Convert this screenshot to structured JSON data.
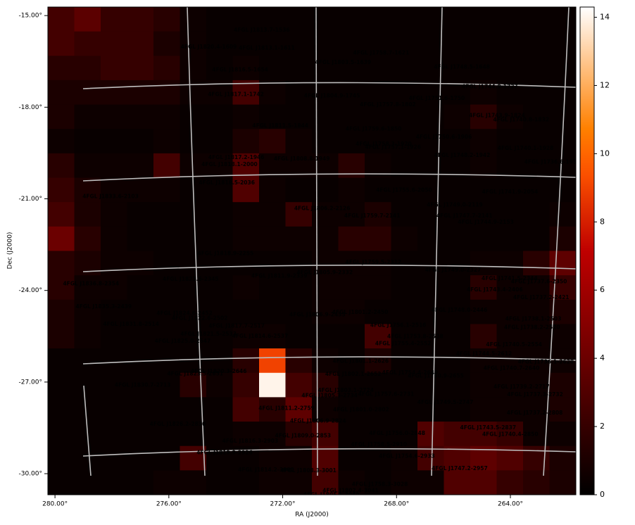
{
  "chart_data": {
    "type": "heatmap",
    "xlabel": "RA (J2000)",
    "ylabel": "Dec (J2000)",
    "xlim": [
      280.25,
      261.7
    ],
    "ylim": [
      -30.69,
      -14.72
    ],
    "xticks": [
      {
        "value": 280,
        "label": "280.00°"
      },
      {
        "value": 276,
        "label": "276.00°"
      },
      {
        "value": 272,
        "label": "272.00°"
      },
      {
        "value": 268,
        "label": "268.00°"
      },
      {
        "value": 264,
        "label": "264.00°"
      }
    ],
    "yticks": [
      {
        "value": -15,
        "label": "-15.00°"
      },
      {
        "value": -18,
        "label": "-18.00°"
      },
      {
        "value": -21,
        "label": "-21.00°"
      },
      {
        "value": -24,
        "label": "-24.00°"
      },
      {
        "value": -27,
        "label": "-27.00°"
      },
      {
        "value": -30,
        "label": "-30.00°"
      }
    ],
    "colormap": "gist_heat",
    "clim": [
      0,
      14.3
    ],
    "cticks": [
      0,
      2,
      4,
      6,
      8,
      10,
      12,
      14
    ],
    "annotation_color": "#1c9c1c",
    "values": [
      [
        2.5,
        3.4,
        2,
        2,
        1.5,
        0.5,
        0.3,
        0.3,
        0.3,
        0.3,
        0.3,
        0.3,
        0.3,
        0.3,
        0.3,
        0.3,
        0.3,
        0.3,
        0.3,
        0.3
      ],
      [
        2.5,
        2,
        2,
        2,
        1,
        0.5,
        0.3,
        0.3,
        0.3,
        0.3,
        0.3,
        0.3,
        0.3,
        0.3,
        0.3,
        0.3,
        0.3,
        0.3,
        0.3,
        0.3
      ],
      [
        1.5,
        1.5,
        2,
        2,
        1.5,
        0.5,
        0.3,
        0.5,
        0.3,
        0.3,
        0.3,
        0.3,
        0.3,
        0.3,
        0.3,
        0.3,
        0.3,
        0.3,
        0.3,
        0.3
      ],
      [
        1,
        1,
        1,
        1,
        1,
        0.5,
        0.5,
        2.5,
        0.5,
        0.3,
        0.3,
        0.3,
        0.3,
        0.3,
        0.3,
        0.3,
        0.5,
        0.3,
        0.3,
        0.3
      ],
      [
        1,
        0.5,
        0.5,
        0.5,
        0.5,
        0.3,
        0.3,
        0.5,
        0.3,
        0.3,
        0.3,
        0.3,
        0.3,
        0.3,
        0.3,
        0.5,
        1.5,
        0.5,
        0.3,
        0.3
      ],
      [
        0.5,
        0.3,
        0.3,
        0.3,
        0.5,
        0.3,
        0.3,
        1,
        1.5,
        0.5,
        0.3,
        0.3,
        0.3,
        0.3,
        0.3,
        0.3,
        0.5,
        0.3,
        0.3,
        0.3
      ],
      [
        1.5,
        0.5,
        0.5,
        0.5,
        2.5,
        0.5,
        0.5,
        3,
        0.5,
        0.5,
        0.5,
        1.5,
        0.5,
        0.3,
        0.3,
        0.3,
        0.5,
        0.3,
        0.3,
        0.3
      ],
      [
        2,
        1,
        0.5,
        0.5,
        0.5,
        0.3,
        0.3,
        3,
        0.5,
        0.3,
        0.3,
        0.5,
        0.3,
        0.3,
        0.3,
        0.3,
        0.3,
        0.3,
        0.3,
        0.3
      ],
      [
        2.5,
        1,
        0.5,
        0.3,
        0.3,
        0.3,
        0.3,
        0.5,
        0.5,
        2,
        0.5,
        0.5,
        1,
        0.3,
        0.3,
        0.3,
        0.3,
        0.3,
        0.3,
        0.5
      ],
      [
        4,
        1.5,
        0.5,
        0.3,
        0.3,
        0.3,
        0.3,
        0.5,
        0.5,
        0.5,
        0.5,
        1.5,
        1.5,
        0.5,
        0.3,
        0.3,
        0.3,
        0.3,
        0.3,
        1
      ],
      [
        1.5,
        1,
        0.5,
        0.5,
        0.3,
        0.3,
        0.3,
        0.3,
        0.3,
        0.3,
        0.5,
        0.5,
        0.5,
        0.3,
        0.3,
        0.3,
        0.5,
        0.5,
        1.5,
        3.5
      ],
      [
        1.5,
        0.5,
        0.5,
        0.3,
        0.3,
        0.3,
        0.3,
        0.5,
        0.3,
        0.3,
        0.5,
        0.5,
        0.5,
        0.3,
        0.3,
        0.3,
        1.5,
        0.5,
        0.5,
        2
      ],
      [
        1,
        0.5,
        0.3,
        0.3,
        0.3,
        0.3,
        0.3,
        0.3,
        0.3,
        0.3,
        0.5,
        0.5,
        0.3,
        0.3,
        0.3,
        0.3,
        0.5,
        0.5,
        0.5,
        1
      ],
      [
        1,
        0.5,
        0.3,
        0.3,
        0.3,
        0.3,
        0.3,
        0.5,
        0.5,
        0.3,
        0.3,
        0.3,
        2.5,
        0.3,
        0.3,
        0.3,
        1.5,
        0.5,
        0.5,
        0.5
      ],
      [
        0.3,
        0.3,
        0.3,
        0.3,
        0.3,
        0.3,
        0.3,
        1.5,
        9,
        1.5,
        0.5,
        0.3,
        1,
        0.3,
        0.3,
        0.3,
        0.5,
        0.5,
        0.5,
        0.5
      ],
      [
        0.3,
        0.3,
        0.3,
        0.3,
        0.3,
        1.5,
        0.5,
        2,
        14,
        2.5,
        1.5,
        0.3,
        0.3,
        0.3,
        0.3,
        0.3,
        0.5,
        0.5,
        0.5,
        1
      ],
      [
        0.3,
        0.3,
        0.3,
        0.3,
        0.3,
        0.3,
        0.3,
        2.5,
        1.5,
        3.5,
        0.5,
        0.3,
        0.3,
        0.3,
        0.3,
        0.3,
        0.5,
        0.5,
        0.5,
        1
      ],
      [
        0.3,
        0.3,
        0.3,
        0.3,
        0.3,
        0.3,
        0.3,
        0.5,
        0.5,
        1.5,
        2.5,
        0.3,
        0.3,
        0.3,
        3,
        2.5,
        2.5,
        2,
        0.5,
        0.5
      ],
      [
        0.3,
        0.3,
        0.3,
        0.3,
        0.3,
        2.5,
        0.3,
        0.3,
        0.5,
        0.5,
        3,
        0.3,
        0.3,
        0.5,
        2.5,
        3,
        3.5,
        3,
        2,
        1
      ],
      [
        0.3,
        0.3,
        0.3,
        0.3,
        0.5,
        0.5,
        0.3,
        0.3,
        0.5,
        0.5,
        2.5,
        0.5,
        0.3,
        0.5,
        0.5,
        3,
        3,
        2,
        1.5,
        1
      ]
    ],
    "annotations": [
      "4FGL J1813.7-1536",
      "4FGL J1820.4-1609",
      "4FGL J1813.1-1611",
      "4FGL J1758.7-1621",
      "4FGL J1803.5-1639",
      "4FGL J1748.5-1648",
      "4FGL J1816.5-1654",
      "4FGL J1817.1-1742",
      "4FGL J1804.9-1745",
      "4FGL J1744.9-1727",
      "4FGL J1751.6-1750",
      "4FGL J1757.8-1802",
      "4FGL J1743.9-1824",
      "4FGL J1740.8-1832",
      "4FGL J1811.5-1844",
      "4FGL J1759.6-1850",
      "4FGL J1750.6-1906",
      "4FGL J1758.3-1920",
      "4FGL J1757.1-1926",
      "4FGL J1740.1-1928",
      "4FGL J1748.2-1942",
      "4FGL J1817.2-1946",
      "4FGL J1808.8-1949",
      "4FGL J1818.1-2000",
      "4FGL J1736.6-1955",
      "4FGL J1818.5-2036",
      "4FGL J1755.6-2050",
      "4FGL J1741.9-2054",
      "4FGL J1833.6-2103",
      "4FGL J1806.2-2126",
      "4FGL J1749.0-2119",
      "4FGL J1759.7-2141",
      "4FGL J1747.7-2141",
      "4FGL J1744.9-2153",
      "4FGL J1818.9-2255",
      "4FGL J1759.5-2312",
      "4FGL J1749.0-2327",
      "4FGL J1805.9-2332",
      "4FGL J1811.9-2339",
      "4FGL J1823.6-2345",
      "4FGL J1741.5-2344",
      "4FGL J1836.8-2354",
      "4FGL J1737.6-2350",
      "4FGL J1743.4-2406",
      "4FGL J1737.2-2421",
      "4FGL J1835.3-2439",
      "4FGL J1801.2-2450",
      "4FGL J1748.0-2446",
      "4FGL J1824.6-2452",
      "4FGL J1806.9-2455",
      "4FGL J1738.1-2503",
      "4FGL J1822.6-2502",
      "4FGL J1756.1-2516",
      "4FGL J1817.7-2517",
      "4FGL J1738.2-2520",
      "4FGL J1831.8-2514",
      "4FGL J1821.5-2533",
      "4FGL J1814.6-2537",
      "4FGL J1753.8-2538",
      "4FGL J1740.5-2554",
      "4FGL J1755.4-2552",
      "4FGL J1825.0-2547",
      "4FGL J1744.5-2612",
      "4FGL J1801.1-2626",
      "4FGL J1736.1-2628",
      "4FGL J1820.3-2646",
      "4FGL J1823.5-2651",
      "4FGL J1802.1-2652",
      "4FGL J1754.4-2649",
      "4FGL J1740.7-2640",
      "4FGL J1750.9-2655",
      "4FGL J1830.7-2713",
      "4FGL J1803.1-2724",
      "4FGL J1739.2-2717",
      "4FGL J1757.6-2731",
      "4FGL J1805.3-2734",
      "4FGL J1749.5-2747",
      "4FGL J1737.3-2732",
      "4FGL J1811.2-2759",
      "4FGL J1801.0-2802",
      "4FGL J1737.2-2808",
      "4FGL J1806.9-2824",
      "4FGL J1826.2-2830",
      "4FGL J1743.5-2837",
      "4FGL J1809.0-2853",
      "4FGL J1740.4-2850",
      "4FGL J1756.0-2848",
      "4FGL J1816.3-2903",
      "4FGL J1758.5-2910",
      "4FGL J1819.9-2926",
      "4FGL J1754.6-2933",
      "4FGL J1814.2-3000",
      "4FGL J1808.3-3001",
      "4FGL J1747.2-2957",
      "4FGL J1758.3-3028",
      "4FGL J1802.4-3041",
      "4FGL J1805.1-3049"
    ]
  }
}
